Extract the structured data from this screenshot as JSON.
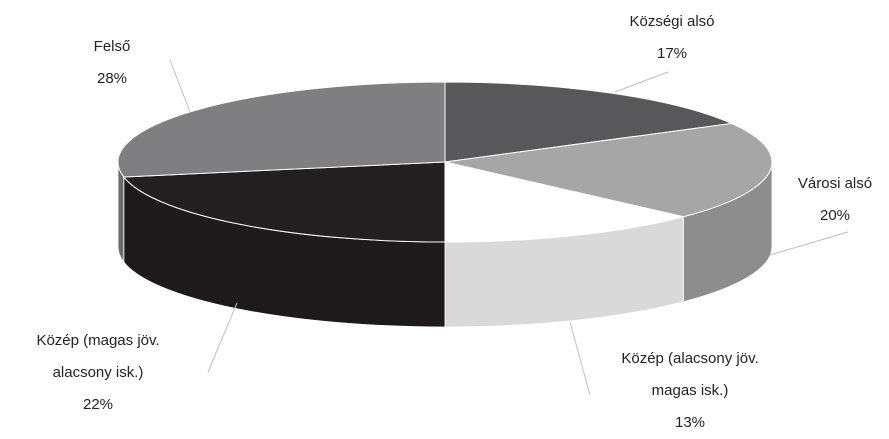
{
  "chart_data": {
    "type": "pie",
    "categories": [
      "Községi alsó",
      "Városi alsó",
      "Közép (alacsony jöv. magas isk.)",
      "Közép (magas jöv. alacsony isk.)",
      "Felső"
    ],
    "values": [
      17,
      20,
      13,
      22,
      28
    ],
    "value_labels": [
      "17%",
      "20%",
      "13%",
      "22%",
      "28%"
    ],
    "colors": [
      "#58585a",
      "#a6a6a6",
      "#ffffff",
      "#231f20",
      "#7f7f81"
    ]
  }
}
